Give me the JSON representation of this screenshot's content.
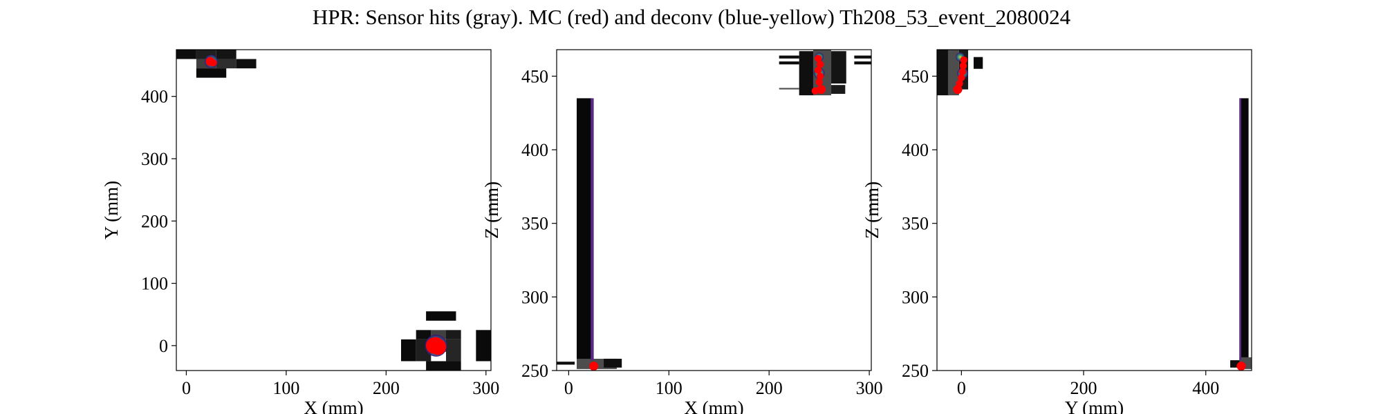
{
  "figure": {
    "title": "HPR: Sensor hits (gray). MC (red) and deconv (blue-yellow) Th208_53_event_2080024"
  },
  "colors": {
    "background": "#ffffff",
    "axis": "#000000",
    "mc": "#ff0000",
    "deconv_low": "#3b0f70",
    "deconv_high": "#fde725"
  },
  "chart_data": [
    {
      "type": "heatmap",
      "name": "xy",
      "xlabel": "X (mm)",
      "ylabel": "Y (mm)",
      "xlim": [
        -10,
        305
      ],
      "ylim": [
        -40,
        475
      ],
      "xticks": [
        0,
        100,
        200,
        300
      ],
      "yticks": [
        0,
        100,
        200,
        300,
        400
      ],
      "grid": false,
      "sensor_hits": [
        {
          "x": -10,
          "y": 460,
          "w": 20,
          "h": 15,
          "shade": 0.05
        },
        {
          "x": 10,
          "y": 460,
          "w": 20,
          "h": 15,
          "shade": 0.12
        },
        {
          "x": 30,
          "y": 460,
          "w": 20,
          "h": 15,
          "shade": 0.08
        },
        {
          "x": 10,
          "y": 445,
          "w": 20,
          "h": 15,
          "shade": 0.25
        },
        {
          "x": 30,
          "y": 445,
          "w": 20,
          "h": 15,
          "shade": 0.18
        },
        {
          "x": 50,
          "y": 445,
          "w": 20,
          "h": 15,
          "shade": 0.06
        },
        {
          "x": 10,
          "y": 430,
          "w": 30,
          "h": 15,
          "shade": 0.04
        },
        {
          "x": 240,
          "y": 40,
          "w": 30,
          "h": 15,
          "shade": 0.04
        },
        {
          "x": 230,
          "y": 10,
          "w": 15,
          "h": 15,
          "shade": 0.05
        },
        {
          "x": 245,
          "y": 10,
          "w": 15,
          "h": 15,
          "shade": 0.25
        },
        {
          "x": 260,
          "y": 10,
          "w": 15,
          "h": 15,
          "shade": 0.1
        },
        {
          "x": 215,
          "y": -25,
          "w": 15,
          "h": 35,
          "shade": 0.04
        },
        {
          "x": 230,
          "y": -25,
          "w": 15,
          "h": 35,
          "shade": 0.12
        },
        {
          "x": 245,
          "y": -10,
          "w": 15,
          "h": 20,
          "shade": 0.35
        },
        {
          "x": 260,
          "y": -25,
          "w": 15,
          "h": 35,
          "shade": 0.15
        },
        {
          "x": 260,
          "y": -40,
          "w": 15,
          "h": 15,
          "shade": 0.05
        },
        {
          "x": 240,
          "y": -40,
          "w": 20,
          "h": 15,
          "shade": 0.05
        },
        {
          "x": 290,
          "y": -25,
          "w": 15,
          "h": 50,
          "shade": 0.04
        }
      ],
      "deconv": [
        {
          "x": 25,
          "y": 456,
          "r": 6
        },
        {
          "x": 250,
          "y": 0,
          "r": 10
        }
      ],
      "mc_points": [
        {
          "x": 24,
          "y": 456,
          "r": 5
        },
        {
          "x": 27,
          "y": 454,
          "r": 4
        },
        {
          "x": 248,
          "y": 0,
          "r": 9
        },
        {
          "x": 252,
          "y": -2,
          "r": 9
        },
        {
          "x": 250,
          "y": 2,
          "r": 8
        }
      ]
    },
    {
      "type": "heatmap",
      "name": "xz",
      "xlabel": "X (mm)",
      "ylabel": "Z (mm)",
      "xlim": [
        -12,
        302
      ],
      "ylim": [
        250,
        468
      ],
      "xticks": [
        0,
        100,
        200,
        300
      ],
      "yticks": [
        250,
        300,
        350,
        400,
        450
      ],
      "grid": false,
      "sensor_hits": [
        {
          "x": 8,
          "y": 257,
          "w": 15,
          "h": 178,
          "shade": 0.03
        },
        {
          "x": -12,
          "y": 254,
          "w": 18,
          "h": 2,
          "shade": 0.05
        },
        {
          "x": 8,
          "y": 251,
          "w": 40,
          "h": 7,
          "shade": 0.3
        },
        {
          "x": 35,
          "y": 252,
          "w": 18,
          "h": 6,
          "shade": 0.06
        },
        {
          "x": 230,
          "y": 437,
          "w": 15,
          "h": 30,
          "shade": 0.06
        },
        {
          "x": 244,
          "y": 437,
          "w": 18,
          "h": 31,
          "shade": 0.3
        },
        {
          "x": 262,
          "y": 445,
          "w": 15,
          "h": 22,
          "shade": 0.08
        },
        {
          "x": 262,
          "y": 438,
          "w": 14,
          "h": 6,
          "shade": 0.1
        },
        {
          "x": 210,
          "y": 458,
          "w": 20,
          "h": 2,
          "shade": 0.05
        },
        {
          "x": 210,
          "y": 462,
          "w": 20,
          "h": 2,
          "shade": 0.05
        },
        {
          "x": 210,
          "y": 441,
          "w": 20,
          "h": 1,
          "shade": 0.3
        },
        {
          "x": 285,
          "y": 458,
          "w": 17,
          "h": 2,
          "shade": 0.05
        },
        {
          "x": 285,
          "y": 462,
          "w": 17,
          "h": 2,
          "shade": 0.05
        }
      ],
      "deconv_bars": [
        {
          "x": 22,
          "y": 257,
          "w": 3,
          "h": 178
        }
      ],
      "deconv": [
        {
          "x": 250,
          "y": 452,
          "r": 5
        },
        {
          "x": 250,
          "y": 463,
          "r": 4
        },
        {
          "x": 25,
          "y": 253,
          "r": 4
        }
      ],
      "mc_points": [
        {
          "x": 249,
          "y": 462,
          "r": 4
        },
        {
          "x": 251,
          "y": 458,
          "r": 4
        },
        {
          "x": 249,
          "y": 454,
          "r": 4
        },
        {
          "x": 251,
          "y": 450,
          "r": 4
        },
        {
          "x": 250,
          "y": 446,
          "r": 4
        },
        {
          "x": 252,
          "y": 441,
          "r": 5
        },
        {
          "x": 246,
          "y": 440,
          "r": 4
        },
        {
          "x": 25,
          "y": 253,
          "r": 5
        }
      ]
    },
    {
      "type": "heatmap",
      "name": "yz",
      "xlabel": "Y (mm)",
      "ylabel": "Z (mm)",
      "xlim": [
        -40,
        475
      ],
      "ylim": [
        250,
        468
      ],
      "xticks": [
        0,
        200,
        400
      ],
      "yticks": [
        250,
        300,
        350,
        400,
        450
      ],
      "grid": false,
      "sensor_hits": [
        {
          "x": -40,
          "y": 437,
          "w": 20,
          "h": 31,
          "shade": 0.06
        },
        {
          "x": -22,
          "y": 437,
          "w": 18,
          "h": 31,
          "shade": 0.3
        },
        {
          "x": -4,
          "y": 441,
          "w": 15,
          "h": 27,
          "shade": 0.1
        },
        {
          "x": 20,
          "y": 455,
          "w": 15,
          "h": 8,
          "shade": 0.04
        },
        {
          "x": 455,
          "y": 257,
          "w": 15,
          "h": 178,
          "shade": 0.03
        },
        {
          "x": 440,
          "y": 252,
          "w": 18,
          "h": 5,
          "shade": 0.06
        },
        {
          "x": 455,
          "y": 251,
          "w": 20,
          "h": 8,
          "shade": 0.3
        }
      ],
      "deconv_bars": [
        {
          "x": 455,
          "y": 257,
          "w": 3,
          "h": 178
        }
      ],
      "deconv": [
        {
          "x": 2,
          "y": 452,
          "r": 5
        },
        {
          "x": -2,
          "y": 463,
          "r": 4
        },
        {
          "x": 458,
          "y": 253,
          "r": 4
        }
      ],
      "mc_points": [
        {
          "x": 4,
          "y": 461,
          "r": 4
        },
        {
          "x": 3,
          "y": 457,
          "r": 4
        },
        {
          "x": 2,
          "y": 453,
          "r": 4
        },
        {
          "x": 0,
          "y": 449,
          "r": 4
        },
        {
          "x": -3,
          "y": 445,
          "r": 4
        },
        {
          "x": -6,
          "y": 441,
          "r": 5
        },
        {
          "x": 458,
          "y": 253,
          "r": 5
        }
      ]
    }
  ]
}
